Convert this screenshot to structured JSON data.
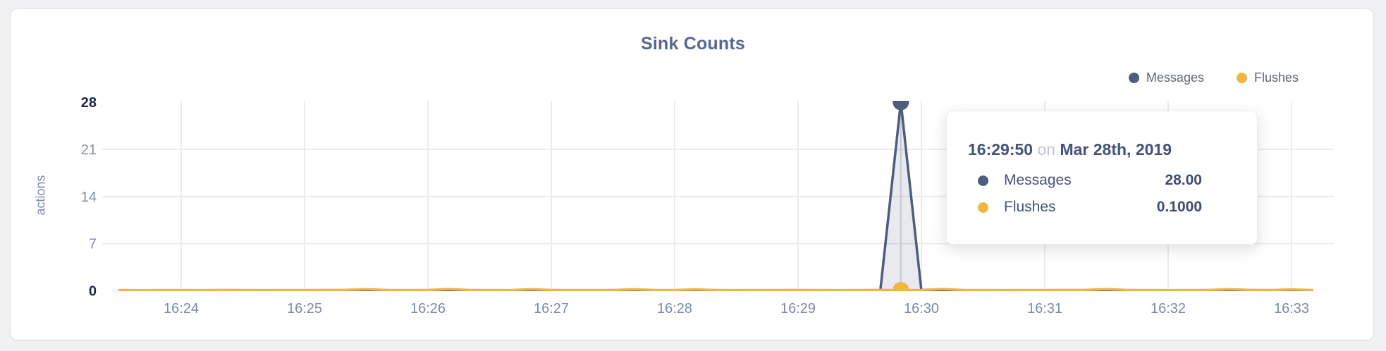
{
  "card": {
    "title": "Sink Counts"
  },
  "tooltip": {
    "time": "16:29:50",
    "on_word": "on",
    "date": "Mar 28th, 2019",
    "rows": [
      {
        "label": "Messages",
        "value": "28.00"
      },
      {
        "label": "Flushes",
        "value": "0.1000"
      }
    ]
  },
  "chart_data": {
    "type": "line",
    "title": "Sink Counts",
    "xlabel": "",
    "ylabel": "actions",
    "ylim": [
      0,
      28
    ],
    "y_ticks": [
      28,
      21,
      14,
      7,
      0
    ],
    "x_ticks": [
      "16:24",
      "16:25",
      "16:26",
      "16:27",
      "16:28",
      "16:29",
      "16:30",
      "16:31",
      "16:32",
      "16:33"
    ],
    "grid": "on",
    "legend_position": "top-right",
    "colors": {
      "background": "#f1f1f3",
      "grid": "#ececef",
      "crosshair": "#d6d7db",
      "tick_normal": "#8290a7",
      "tick_strong": "#1d2945",
      "axis_label": "#7d89a4"
    },
    "x": [
      "16:23:30",
      "16:23:40",
      "16:23:50",
      "16:24:00",
      "16:24:10",
      "16:24:20",
      "16:24:30",
      "16:24:40",
      "16:24:50",
      "16:25:00",
      "16:25:10",
      "16:25:20",
      "16:25:30",
      "16:25:40",
      "16:25:50",
      "16:26:00",
      "16:26:10",
      "16:26:20",
      "16:26:30",
      "16:26:40",
      "16:26:50",
      "16:27:00",
      "16:27:10",
      "16:27:20",
      "16:27:30",
      "16:27:40",
      "16:27:50",
      "16:28:00",
      "16:28:10",
      "16:28:20",
      "16:28:30",
      "16:28:40",
      "16:28:50",
      "16:29:00",
      "16:29:10",
      "16:29:20",
      "16:29:30",
      "16:29:40",
      "16:29:50",
      "16:30:00",
      "16:30:10",
      "16:30:20",
      "16:30:30",
      "16:30:40",
      "16:30:50",
      "16:31:00",
      "16:31:10",
      "16:31:20",
      "16:31:30",
      "16:31:40",
      "16:31:50",
      "16:32:00",
      "16:32:10",
      "16:32:20",
      "16:32:30",
      "16:32:40",
      "16:32:50",
      "16:33:00",
      "16:33:10"
    ],
    "series": [
      {
        "name": "Messages",
        "color": "#4d5c7f",
        "fill": "rgba(77,92,128,0.13)",
        "values": [
          0,
          0,
          0,
          0,
          0,
          0,
          0,
          0,
          0,
          0,
          0,
          0,
          0,
          0,
          0,
          0,
          0,
          0,
          0,
          0,
          0,
          0,
          0,
          0,
          0,
          0,
          0,
          0,
          0,
          0,
          0,
          0,
          0,
          0,
          0,
          0,
          0,
          0,
          28,
          0,
          0,
          0,
          0,
          0,
          0,
          0,
          0,
          0,
          0,
          0,
          0,
          0,
          0,
          0,
          0,
          0,
          0,
          0,
          0
        ]
      },
      {
        "name": "Flushes",
        "color": "#f0b63e",
        "fill": "none",
        "values": [
          0.1,
          0.08,
          0.1,
          0.1,
          0.09,
          0.11,
          0.1,
          0.09,
          0.1,
          0.1,
          0.11,
          0.13,
          0.22,
          0.12,
          0.1,
          0.12,
          0.24,
          0.12,
          0.1,
          0.09,
          0.22,
          0.11,
          0.1,
          0.1,
          0.1,
          0.21,
          0.11,
          0.1,
          0.2,
          0.1,
          0.09,
          0.1,
          0.1,
          0.11,
          0.1,
          0.09,
          0.1,
          0.11,
          0.1,
          0.12,
          0.25,
          0.12,
          0.1,
          0.09,
          0.1,
          0.1,
          0.11,
          0.13,
          0.24,
          0.12,
          0.1,
          0.09,
          0.1,
          0.11,
          0.22,
          0.12,
          0.1,
          0.2,
          0.1
        ]
      }
    ],
    "highlight": {
      "time": "16:29:50",
      "values": [
        28,
        0.1
      ]
    }
  }
}
